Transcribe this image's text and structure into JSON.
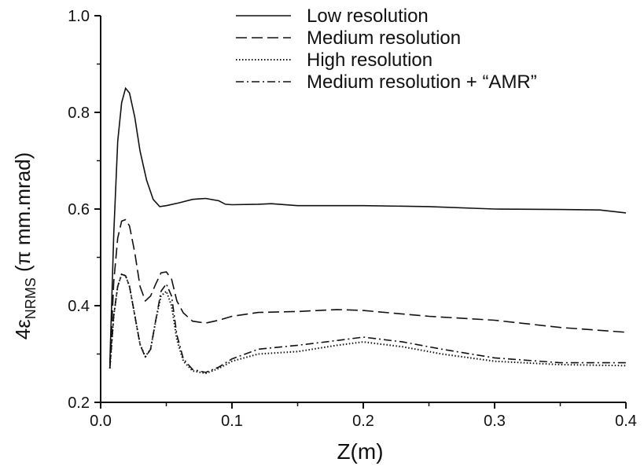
{
  "chart_data": {
    "type": "line",
    "title": "",
    "xlabel": "Z(m)",
    "ylabel": {
      "prefix": "4ε",
      "subscript": "NRMS",
      "suffix": " (π mm.mrad)"
    },
    "xlim": [
      0.0,
      0.4
    ],
    "ylim": [
      0.2,
      1.0
    ],
    "x_ticks": [
      "0.0",
      "0.1",
      "0.2",
      "0.3",
      "0.4"
    ],
    "y_ticks": [
      "0.2",
      "0.4",
      "0.6",
      "0.8",
      "1.0"
    ],
    "grid": false,
    "legend_position": "top-right",
    "series": [
      {
        "name": "Low resolution",
        "style": "solid",
        "points": [
          [
            0.007,
            0.28
          ],
          [
            0.01,
            0.55
          ],
          [
            0.013,
            0.74
          ],
          [
            0.016,
            0.82
          ],
          [
            0.019,
            0.85
          ],
          [
            0.022,
            0.84
          ],
          [
            0.026,
            0.79
          ],
          [
            0.03,
            0.72
          ],
          [
            0.035,
            0.66
          ],
          [
            0.04,
            0.62
          ],
          [
            0.045,
            0.605
          ],
          [
            0.05,
            0.607
          ],
          [
            0.06,
            0.613
          ],
          [
            0.07,
            0.62
          ],
          [
            0.08,
            0.622
          ],
          [
            0.09,
            0.617
          ],
          [
            0.095,
            0.61
          ],
          [
            0.1,
            0.609
          ],
          [
            0.12,
            0.61
          ],
          [
            0.13,
            0.611
          ],
          [
            0.15,
            0.607
          ],
          [
            0.2,
            0.607
          ],
          [
            0.25,
            0.605
          ],
          [
            0.3,
            0.6
          ],
          [
            0.35,
            0.599
          ],
          [
            0.38,
            0.598
          ],
          [
            0.4,
            0.592
          ]
        ]
      },
      {
        "name": "Medium resolution",
        "style": "dashed",
        "points": [
          [
            0.007,
            0.27
          ],
          [
            0.01,
            0.45
          ],
          [
            0.013,
            0.54
          ],
          [
            0.016,
            0.575
          ],
          [
            0.019,
            0.578
          ],
          [
            0.022,
            0.565
          ],
          [
            0.026,
            0.51
          ],
          [
            0.03,
            0.44
          ],
          [
            0.034,
            0.41
          ],
          [
            0.038,
            0.42
          ],
          [
            0.042,
            0.445
          ],
          [
            0.046,
            0.468
          ],
          [
            0.05,
            0.47
          ],
          [
            0.054,
            0.455
          ],
          [
            0.058,
            0.41
          ],
          [
            0.063,
            0.385
          ],
          [
            0.07,
            0.368
          ],
          [
            0.08,
            0.364
          ],
          [
            0.09,
            0.37
          ],
          [
            0.1,
            0.378
          ],
          [
            0.12,
            0.386
          ],
          [
            0.15,
            0.388
          ],
          [
            0.18,
            0.392
          ],
          [
            0.2,
            0.39
          ],
          [
            0.25,
            0.378
          ],
          [
            0.3,
            0.37
          ],
          [
            0.35,
            0.355
          ],
          [
            0.4,
            0.345
          ]
        ]
      },
      {
        "name": "High resolution",
        "style": "dotted",
        "points": [
          [
            0.007,
            0.27
          ],
          [
            0.01,
            0.38
          ],
          [
            0.013,
            0.44
          ],
          [
            0.016,
            0.465
          ],
          [
            0.019,
            0.462
          ],
          [
            0.022,
            0.44
          ],
          [
            0.026,
            0.38
          ],
          [
            0.03,
            0.32
          ],
          [
            0.034,
            0.295
          ],
          [
            0.038,
            0.31
          ],
          [
            0.042,
            0.37
          ],
          [
            0.046,
            0.42
          ],
          [
            0.05,
            0.43
          ],
          [
            0.054,
            0.4
          ],
          [
            0.058,
            0.33
          ],
          [
            0.063,
            0.285
          ],
          [
            0.07,
            0.265
          ],
          [
            0.08,
            0.26
          ],
          [
            0.09,
            0.27
          ],
          [
            0.1,
            0.285
          ],
          [
            0.12,
            0.3
          ],
          [
            0.15,
            0.305
          ],
          [
            0.18,
            0.318
          ],
          [
            0.2,
            0.325
          ],
          [
            0.23,
            0.315
          ],
          [
            0.26,
            0.3
          ],
          [
            0.3,
            0.285
          ],
          [
            0.35,
            0.278
          ],
          [
            0.4,
            0.276
          ]
        ]
      },
      {
        "name": "Medium resolution + “AMR”",
        "style": "dashdot",
        "points": [
          [
            0.007,
            0.27
          ],
          [
            0.01,
            0.38
          ],
          [
            0.013,
            0.44
          ],
          [
            0.016,
            0.465
          ],
          [
            0.019,
            0.462
          ],
          [
            0.022,
            0.44
          ],
          [
            0.026,
            0.38
          ],
          [
            0.03,
            0.32
          ],
          [
            0.034,
            0.293
          ],
          [
            0.038,
            0.31
          ],
          [
            0.042,
            0.37
          ],
          [
            0.046,
            0.43
          ],
          [
            0.05,
            0.445
          ],
          [
            0.054,
            0.42
          ],
          [
            0.058,
            0.34
          ],
          [
            0.063,
            0.29
          ],
          [
            0.07,
            0.268
          ],
          [
            0.08,
            0.262
          ],
          [
            0.09,
            0.273
          ],
          [
            0.1,
            0.29
          ],
          [
            0.12,
            0.31
          ],
          [
            0.15,
            0.318
          ],
          [
            0.18,
            0.328
          ],
          [
            0.2,
            0.335
          ],
          [
            0.23,
            0.325
          ],
          [
            0.26,
            0.31
          ],
          [
            0.3,
            0.292
          ],
          [
            0.35,
            0.282
          ],
          [
            0.4,
            0.282
          ]
        ]
      }
    ]
  }
}
